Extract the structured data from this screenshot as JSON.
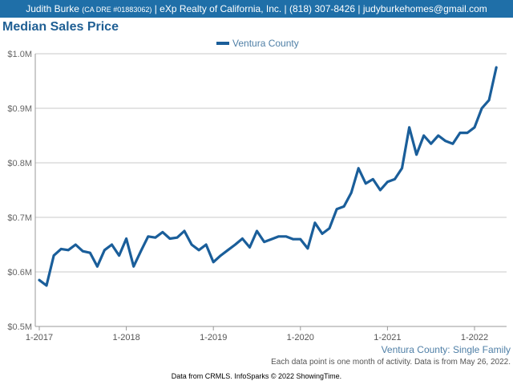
{
  "header": {
    "agent_name": "Judith Burke",
    "license": "(CA DRE #01883062)",
    "details": "| eXp Realty of California, Inc. | (818) 307-8426 | judyburkehomes@gmail.com"
  },
  "colors": {
    "header_bg": "#1f6fa8",
    "series": "#1a5e9a",
    "grid": "#c8c8c8"
  },
  "chart_data": {
    "type": "line",
    "title": "Median Sales Price",
    "xlabel": "",
    "ylabel": "",
    "ylim": [
      500000,
      1000000
    ],
    "yticks": [
      500000,
      600000,
      700000,
      800000,
      900000,
      1000000
    ],
    "ytick_labels": [
      "$0.5M",
      "$0.6M",
      "$0.7M",
      "$0.8M",
      "$0.9M",
      "$1.0M"
    ],
    "xticks": [
      "1-2017",
      "1-2018",
      "1-2019",
      "1-2020",
      "1-2021",
      "1-2022"
    ],
    "grid": true,
    "legend": "top-center",
    "series": [
      {
        "name": "Ventura County",
        "start_month": "1-2017",
        "values": [
          585000,
          575000,
          630000,
          642000,
          640000,
          650000,
          638000,
          635000,
          610000,
          640000,
          650000,
          630000,
          661000,
          610000,
          638000,
          665000,
          663000,
          673000,
          661000,
          663000,
          675000,
          650000,
          640000,
          650000,
          618000,
          630000,
          640000,
          650000,
          661000,
          645000,
          675000,
          655000,
          660000,
          665000,
          665000,
          660000,
          660000,
          643000,
          690000,
          670000,
          680000,
          715000,
          720000,
          745000,
          790000,
          762000,
          770000,
          750000,
          765000,
          770000,
          790000,
          865000,
          815000,
          850000,
          835000,
          850000,
          840000,
          835000,
          855000,
          855000,
          865000,
          900000,
          915000,
          975000
        ]
      }
    ]
  },
  "footer": {
    "series_label": "Ventura County: Single Family",
    "note": "Each data point is one month of activity. Data is from May 26, 2022.",
    "source": "Data from CRMLS. InfoSparks © 2022 ShowingTime."
  }
}
